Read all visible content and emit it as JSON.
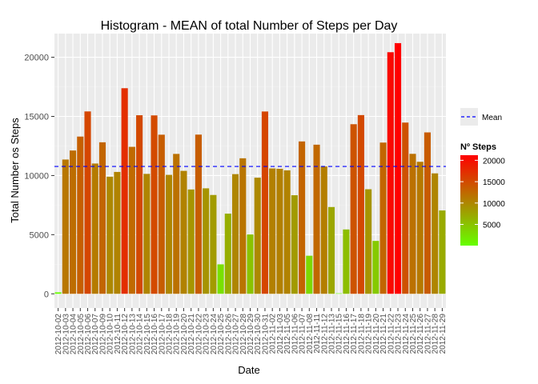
{
  "chart_data": {
    "type": "bar",
    "title": "Histogram - MEAN of total Number of Steps per Day",
    "xlabel": "Date",
    "ylabel": "Total Number os Steps",
    "ylim": [
      -1200,
      22000
    ],
    "yticks": [
      0,
      5000,
      10000,
      15000,
      20000
    ],
    "categories": [
      "2012-10-02",
      "2012-10-03",
      "2012-10-04",
      "2012-10-05",
      "2012-10-06",
      "2012-10-07",
      "2012-10-09",
      "2012-10-10",
      "2012-10-11",
      "2012-10-12",
      "2012-10-13",
      "2012-10-14",
      "2012-10-15",
      "2012-10-16",
      "2012-10-17",
      "2012-10-18",
      "2012-10-19",
      "2012-10-20",
      "2012-10-21",
      "2012-10-22",
      "2012-10-23",
      "2012-10-24",
      "2012-10-25",
      "2012-10-26",
      "2012-10-27",
      "2012-10-28",
      "2012-10-29",
      "2012-10-30",
      "2012-10-31",
      "2012-11-02",
      "2012-11-03",
      "2012-11-05",
      "2012-11-06",
      "2012-11-07",
      "2012-11-08",
      "2012-11-11",
      "2012-11-12",
      "2012-11-13",
      "2012-11-15",
      "2012-11-16",
      "2012-11-17",
      "2012-11-18",
      "2012-11-19",
      "2012-11-20",
      "2012-11-21",
      "2012-11-22",
      "2012-11-23",
      "2012-11-24",
      "2012-11-25",
      "2012-11-26",
      "2012-11-27",
      "2012-11-28",
      "2012-11-29"
    ],
    "values": [
      126,
      11352,
      12116,
      13294,
      15420,
      11015,
      12811,
      9900,
      10304,
      17382,
      12426,
      15098,
      10139,
      15084,
      13452,
      10056,
      11829,
      10395,
      8821,
      13460,
      8918,
      8355,
      2492,
      6778,
      10119,
      11458,
      5018,
      9819,
      15414,
      10600,
      10571,
      10439,
      8334,
      12883,
      3219,
      12608,
      10765,
      7336,
      41,
      5441,
      14339,
      15110,
      8841,
      4472,
      12787,
      20427,
      21194,
      14478,
      11834,
      11162,
      13646,
      10183,
      7047
    ],
    "mean": 10766.19,
    "legend": {
      "line_label": "Mean",
      "fill_title": "Nº Steps",
      "fill_ticks": [
        5000,
        10000,
        15000,
        20000
      ],
      "fill_range": [
        41,
        21194
      ],
      "fill_colors": [
        "#66ff00",
        "#ff0000"
      ]
    },
    "grid": true,
    "legend_position": "right",
    "panel_color": "#ebebeb",
    "mean_line_color": "#0000ff"
  }
}
